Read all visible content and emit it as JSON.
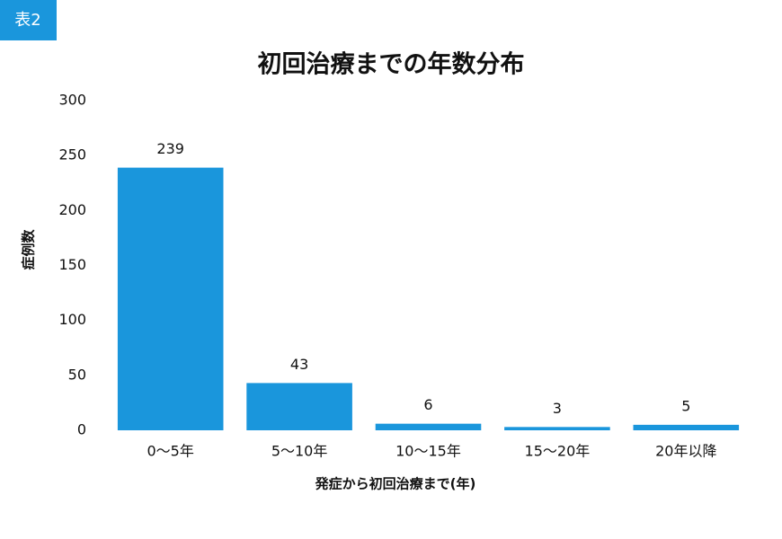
{
  "badge": "表2",
  "chart_data": {
    "type": "bar",
    "title": "初回治療までの年数分布",
    "x_label": "発症から初回治療まで(年)",
    "y_label": "症例数",
    "categories": [
      "0〜5年",
      "5〜10年",
      "10〜15年",
      "15〜20年",
      "20年以降"
    ],
    "values": [
      239,
      43,
      6,
      3,
      5
    ],
    "color": "#1a96dc",
    "ylim": [
      0,
      300
    ],
    "yticks": [
      0,
      50,
      100,
      150,
      200,
      250,
      300
    ],
    "grid": false
  }
}
